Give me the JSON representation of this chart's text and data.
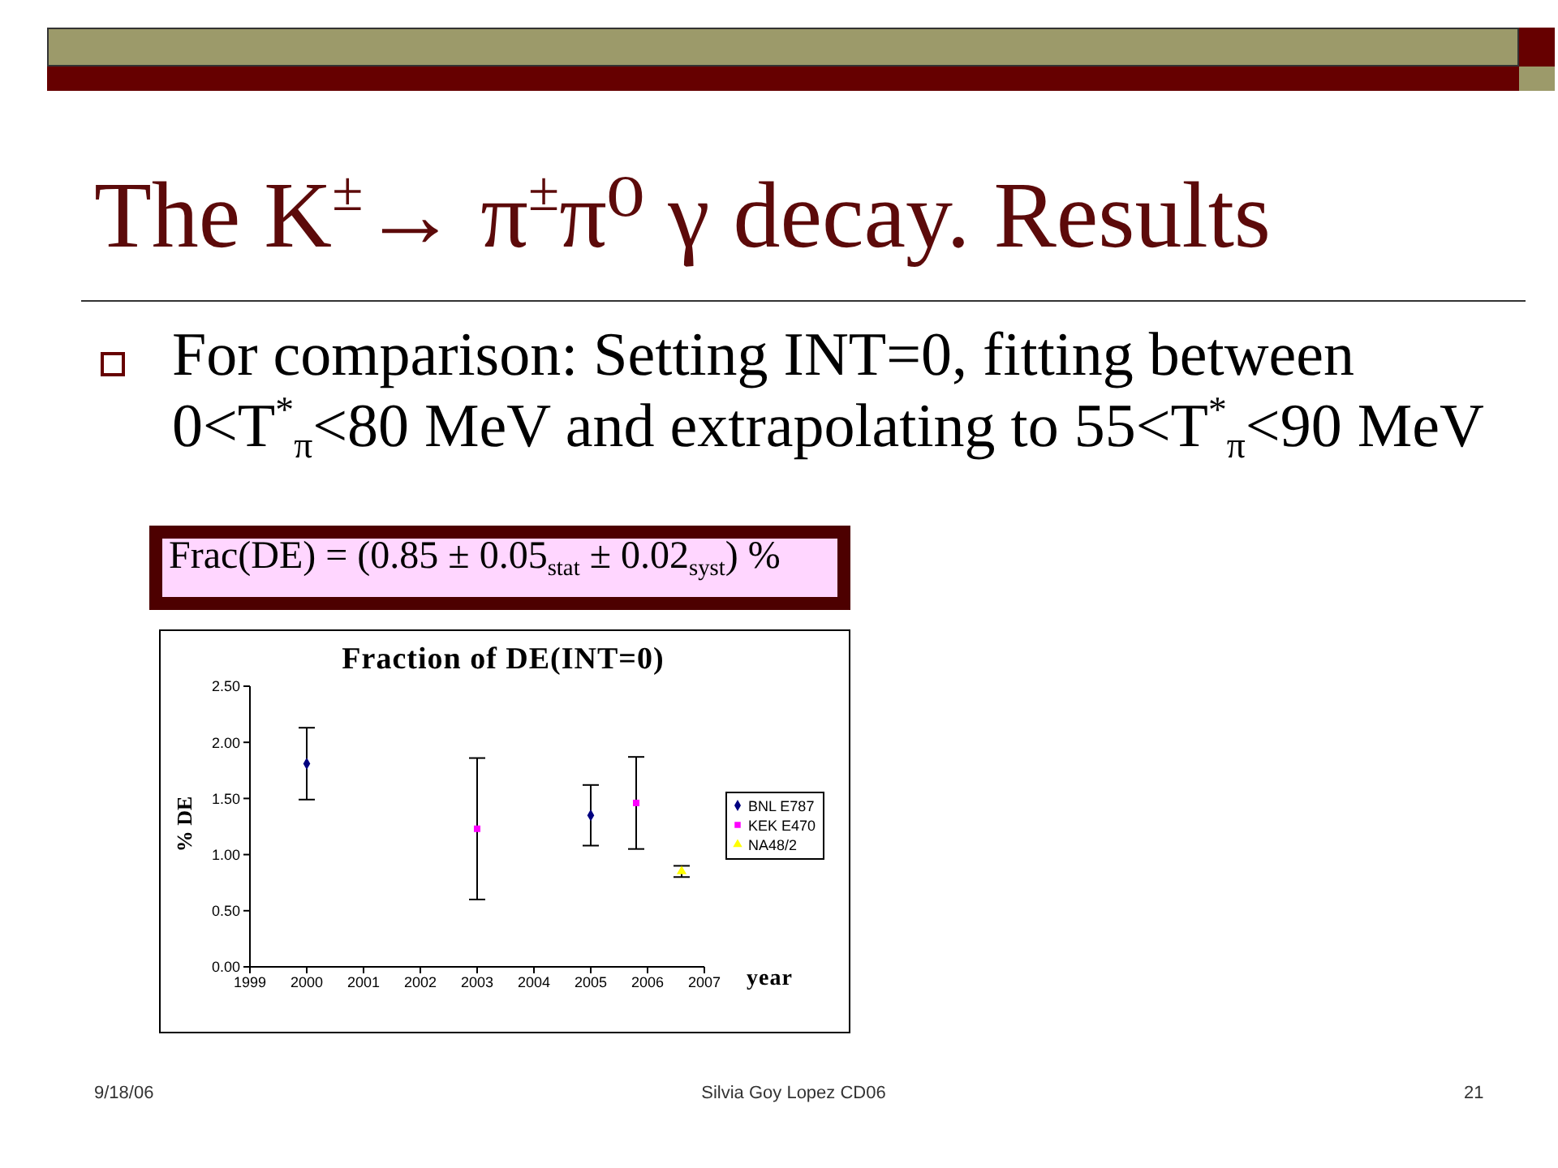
{
  "chart_data": {
    "type": "scatter",
    "title": "The K$^{±}$→ π$^{±}$π⁰ γ decay. Results",
    "subtitle": "Fraction of DE(INT=0)",
    "xlabel": "year",
    "ylabel": "% DE",
    "annotations": [
      "For comparison: Setting INT=0, fitting between 0<T$^{*}$$_{π}$<80 MeV and extrapolating to 55<T$^{*}$$_{π}$<90 MeV",
      "Frac(DE) = (0.85 ± 0.05$_{stat}$ ± 0.02$_{syst}$) %",
      "9/18/06",
      "Silvia Goy Lopez CD06",
      "21"
    ],
    "xlim": [
      1999,
      2007
    ],
    "xticks": [
      1999,
      2000,
      2001,
      2002,
      2003,
      2004,
      2005,
      2006,
      2007
    ],
    "ylim": [
      0,
      2.5
    ],
    "yticks": [
      {
        "value": 0,
        "label": "0.00"
      },
      {
        "value": 0.5,
        "label": "0.50"
      },
      {
        "value": 1,
        "label": "1.00"
      },
      {
        "value": 1.5,
        "label": "1.50"
      },
      {
        "value": 2,
        "label": "2.00"
      },
      {
        "value": 2.5,
        "label": "2.50"
      }
    ],
    "legend": "right",
    "series": [
      {
        "name": "BNL E787",
        "color": "#000080",
        "marker": "diamond",
        "x": [
          2000,
          2005
        ],
        "values": [
          1.81,
          1.35
        ],
        "errors": [
          0.32,
          0.27
        ]
      },
      {
        "name": "KEK E470",
        "color": "#ff00ff",
        "marker": "square",
        "x": [
          2003,
          2005.8
        ],
        "values": [
          1.23,
          1.46
        ],
        "errors": [
          0.63,
          0.41
        ]
      },
      {
        "name": "NA48/2",
        "color": "#ffff00",
        "marker": "triangle",
        "x": [
          2006.6
        ],
        "values": [
          0.85
        ],
        "errors": [
          0.05
        ]
      }
    ]
  }
}
